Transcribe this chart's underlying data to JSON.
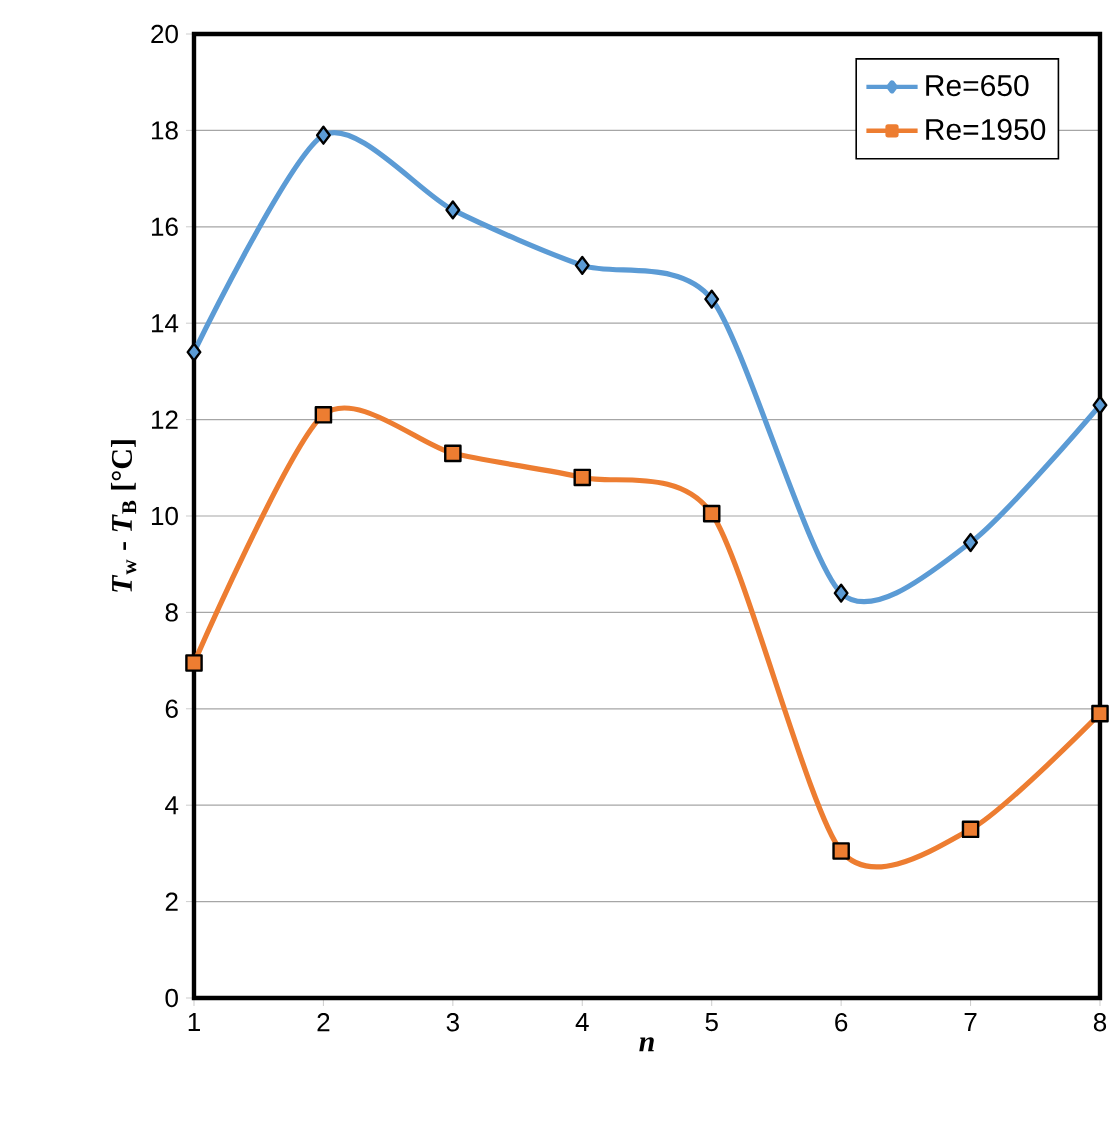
{
  "chart_data": {
    "type": "line",
    "xlabel": "n",
    "ylabel": "*T*$_{w}$ - *T*$_{B}$ [°C]",
    "x": [
      1,
      2,
      3,
      4,
      5,
      6,
      7,
      8
    ],
    "series": [
      {
        "name": "Re=650",
        "color": "#5b9bd5",
        "marker": "diamond",
        "values": [
          13.4,
          17.9,
          16.35,
          15.2,
          14.5,
          8.4,
          9.45,
          12.3
        ]
      },
      {
        "name": "Re=1950",
        "color": "#ed7d31",
        "marker": "square",
        "values": [
          6.95,
          12.1,
          11.3,
          10.8,
          10.05,
          3.05,
          3.5,
          5.9
        ]
      }
    ],
    "xlim": [
      1,
      8
    ],
    "xticks": [
      1,
      2,
      3,
      4,
      5,
      6,
      7,
      8
    ],
    "ylim": [
      0,
      20
    ],
    "yticks": [
      0,
      2,
      4,
      6,
      8,
      10,
      12,
      14,
      16,
      18,
      20
    ],
    "grid": "y",
    "legend": "top right",
    "line_style": "solid"
  }
}
